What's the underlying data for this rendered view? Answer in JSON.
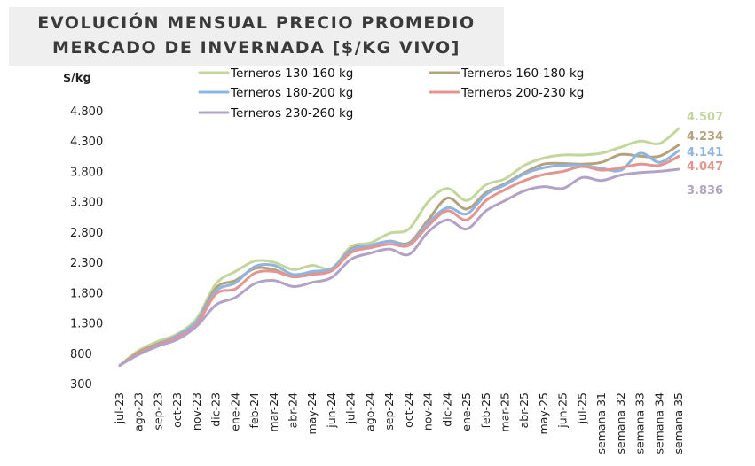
{
  "chart_data": {
    "type": "line",
    "title_lines": [
      "EVOLUCIÓN MENSUAL PRECIO PROMEDIO",
      "MERCADO DE INVERNADA [$/KG VIVO]"
    ],
    "ylabel": "$/kg",
    "ylim": [
      300,
      4800
    ],
    "yticks": [
      "4.800",
      "4.300",
      "3.800",
      "3.300",
      "2.800",
      "2.300",
      "1.800",
      "1.300",
      "800",
      "300"
    ],
    "ytick_values": [
      4800,
      4300,
      3800,
      3300,
      2800,
      2300,
      1800,
      1300,
      800,
      300
    ],
    "categories": [
      "jul-23",
      "ago-23",
      "sep-23",
      "oct-23",
      "nov-23",
      "dic-23",
      "ene-24",
      "feb-24",
      "mar-24",
      "abr-24",
      "may-24",
      "jun-24",
      "jul-24",
      "ago-24",
      "sep-24",
      "oct-24",
      "nov-24",
      "dic-24",
      "ene-25",
      "feb-25",
      "mar-25",
      "abr-25",
      "may-25",
      "jun-25",
      "jul-25",
      "semana 31",
      "semana 32",
      "semana 33",
      "semana 34",
      "semana 35"
    ],
    "series": [
      {
        "name": "Terneros 130-160 kg",
        "color": "#c3d69b",
        "end_label": "4.507",
        "values": [
          600,
          850,
          1000,
          1120,
          1380,
          1950,
          2150,
          2320,
          2300,
          2180,
          2250,
          2200,
          2560,
          2620,
          2780,
          2850,
          3300,
          3520,
          3320,
          3580,
          3680,
          3900,
          4020,
          4070,
          4070,
          4100,
          4200,
          4300,
          4260,
          4507
        ]
      },
      {
        "name": "Terneros 160-180 kg",
        "color": "#b4a27d",
        "end_label": "4.234",
        "values": [
          600,
          820,
          960,
          1080,
          1330,
          1880,
          2000,
          2200,
          2180,
          2060,
          2120,
          2180,
          2520,
          2580,
          2650,
          2620,
          3000,
          3360,
          3180,
          3450,
          3600,
          3780,
          3920,
          3930,
          3920,
          3950,
          4080,
          4050,
          4050,
          4234
        ]
      },
      {
        "name": "Terneros 180-200 kg",
        "color": "#8eb4e3",
        "end_label": "4.141",
        "values": [
          600,
          800,
          950,
          1100,
          1330,
          1830,
          1960,
          2230,
          2250,
          2100,
          2150,
          2200,
          2500,
          2580,
          2650,
          2600,
          2950,
          3200,
          3100,
          3420,
          3580,
          3760,
          3860,
          3900,
          3900,
          3850,
          3820,
          4100,
          3950,
          4141
        ]
      },
      {
        "name": "Terneros 200-230 kg",
        "color": "#e6948f",
        "end_label": "4.047",
        "values": [
          600,
          800,
          940,
          1070,
          1280,
          1780,
          1860,
          2120,
          2150,
          2060,
          2100,
          2160,
          2460,
          2540,
          2600,
          2580,
          2900,
          3150,
          3000,
          3320,
          3500,
          3650,
          3750,
          3800,
          3880,
          3820,
          3860,
          3920,
          3900,
          4047
        ]
      },
      {
        "name": "Terneros 230-260 kg",
        "color": "#b3a2c7",
        "end_label": "3.836",
        "values": [
          600,
          780,
          920,
          1030,
          1250,
          1600,
          1720,
          1950,
          2000,
          1900,
          1970,
          2050,
          2350,
          2450,
          2520,
          2430,
          2800,
          3000,
          2850,
          3150,
          3320,
          3480,
          3550,
          3520,
          3700,
          3650,
          3740,
          3780,
          3800,
          3836
        ]
      }
    ]
  }
}
